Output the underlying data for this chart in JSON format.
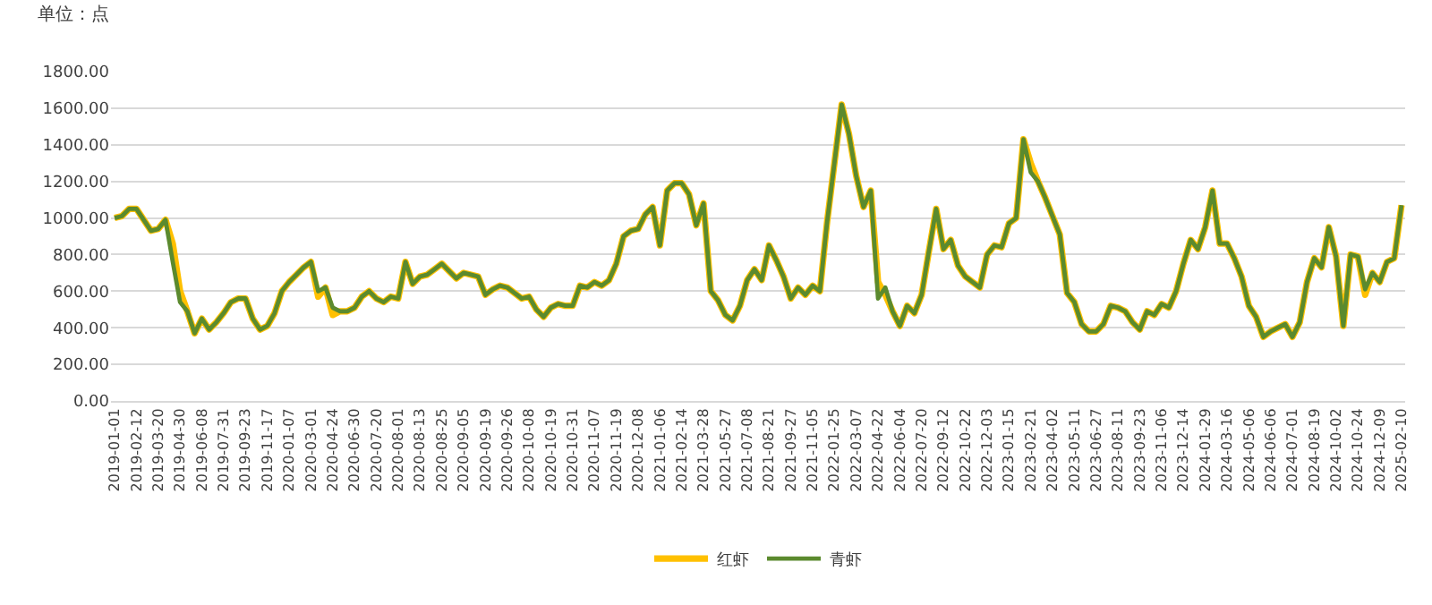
{
  "chart_data": {
    "type": "line",
    "annotations": [
      "单位：点"
    ],
    "categories": [
      "2019-01-01",
      null,
      null,
      "2019-02-12",
      null,
      null,
      "2019-03-20",
      null,
      null,
      "2019-04-30",
      null,
      null,
      "2019-06-08",
      null,
      null,
      "2019-07-31",
      null,
      null,
      "2019-09-23",
      null,
      null,
      "2019-11-17",
      null,
      null,
      "2020-01-07",
      null,
      null,
      "2020-03-01",
      null,
      null,
      "2020-04-24",
      null,
      null,
      "2020-06-30",
      null,
      null,
      "2020-07-20",
      null,
      null,
      "2020-08-01",
      null,
      null,
      "2020-08-13",
      null,
      null,
      "2020-08-25",
      null,
      null,
      "2020-09-05",
      null,
      null,
      "2020-09-19",
      null,
      null,
      "2020-09-26",
      null,
      null,
      "2020-10-08",
      null,
      null,
      "2020-10-19",
      null,
      null,
      "2020-10-31",
      null,
      null,
      "2020-11-07",
      null,
      null,
      "2020-11-19",
      null,
      null,
      "2020-12-08",
      null,
      null,
      "2021-01-06",
      null,
      null,
      "2021-02-14",
      null,
      null,
      "2021-03-28",
      null,
      null,
      "2021-05-27",
      null,
      null,
      "2021-07-08",
      null,
      null,
      "2021-08-21",
      null,
      null,
      "2021-09-27",
      null,
      null,
      "2021-11-05",
      null,
      null,
      "2022-01-25",
      null,
      null,
      "2022-03-07",
      null,
      null,
      "2022-04-22",
      null,
      null,
      "2022-06-04",
      null,
      null,
      "2022-07-20",
      null,
      null,
      "2022-09-12",
      null,
      null,
      "2022-10-22",
      null,
      null,
      "2022-12-03",
      null,
      null,
      "2023-01-15",
      null,
      null,
      "2023-02-21",
      null,
      null,
      "2023-04-02",
      null,
      null,
      "2023-05-11",
      null,
      null,
      "2023-06-27",
      null,
      null,
      "2023-08-11",
      null,
      null,
      "2023-09-23",
      null,
      null,
      "2023-11-06",
      null,
      null,
      "2023-12-14",
      null,
      null,
      "2024-01-29",
      null,
      null,
      "2024-03-16",
      null,
      null,
      "2024-05-06",
      null,
      null,
      "2024-06-06",
      null,
      null,
      "2024-07-01",
      null,
      null,
      "2024-08-19",
      null,
      null,
      "2024-10-02",
      null,
      null,
      "2024-10-24",
      null,
      null,
      "2024-12-09",
      null,
      null,
      "2025-02-10"
    ],
    "series": [
      {
        "name": "红虾",
        "color": "#ffc000",
        "values": [
          1000,
          1010,
          1050,
          1050,
          990,
          930,
          940,
          990,
          860,
          600,
          490,
          370,
          450,
          390,
          430,
          480,
          540,
          560,
          560,
          450,
          390,
          410,
          480,
          600,
          650,
          690,
          730,
          760,
          570,
          620,
          470,
          490,
          490,
          510,
          570,
          600,
          560,
          540,
          570,
          560,
          760,
          640,
          680,
          690,
          720,
          750,
          710,
          670,
          700,
          690,
          680,
          580,
          610,
          630,
          620,
          590,
          560,
          570,
          500,
          460,
          510,
          530,
          520,
          520,
          630,
          620,
          650,
          630,
          660,
          750,
          900,
          930,
          940,
          1020,
          1060,
          850,
          1150,
          1190,
          1190,
          1130,
          960,
          1080,
          600,
          550,
          470,
          440,
          520,
          660,
          720,
          660,
          850,
          770,
          680,
          560,
          620,
          580,
          630,
          600,
          980,
          1300,
          1620,
          1460,
          1230,
          1060,
          1150,
          650,
          580,
          490,
          410,
          520,
          480,
          580,
          820,
          1050,
          830,
          880,
          740,
          680,
          650,
          620,
          800,
          850,
          840,
          970,
          1000,
          1430,
          1300,
          1200,
          1110,
          1010,
          910,
          590,
          540,
          420,
          380,
          380,
          420,
          520,
          510,
          490,
          430,
          390,
          490,
          470,
          530,
          510,
          600,
          750,
          880,
          830,
          950,
          1150,
          860,
          860,
          780,
          680,
          520,
          460,
          350,
          380,
          400,
          420,
          350,
          430,
          650,
          780,
          730,
          950,
          790,
          410,
          800,
          790,
          580,
          700,
          650,
          760,
          780,
          1070
        ]
      },
      {
        "name": "青虾",
        "color": "#5b8a2e",
        "values": [
          1000,
          1010,
          1050,
          1050,
          990,
          930,
          940,
          990,
          760,
          540,
          490,
          370,
          450,
          390,
          430,
          480,
          540,
          560,
          560,
          450,
          390,
          410,
          480,
          600,
          650,
          690,
          730,
          760,
          600,
          620,
          510,
          490,
          490,
          510,
          570,
          600,
          560,
          540,
          570,
          560,
          760,
          640,
          680,
          690,
          720,
          750,
          710,
          670,
          700,
          690,
          680,
          580,
          610,
          630,
          620,
          590,
          560,
          570,
          500,
          460,
          510,
          530,
          520,
          520,
          630,
          620,
          650,
          630,
          660,
          750,
          900,
          930,
          940,
          1020,
          1060,
          850,
          1150,
          1190,
          1190,
          1130,
          960,
          1080,
          600,
          550,
          470,
          440,
          520,
          660,
          720,
          660,
          850,
          770,
          680,
          560,
          620,
          580,
          630,
          600,
          980,
          1300,
          1620,
          1460,
          1230,
          1060,
          1150,
          560,
          620,
          490,
          410,
          520,
          480,
          580,
          820,
          1050,
          830,
          880,
          740,
          680,
          650,
          620,
          800,
          850,
          840,
          970,
          1000,
          1430,
          1250,
          1200,
          1110,
          1010,
          910,
          590,
          540,
          420,
          380,
          380,
          420,
          520,
          510,
          490,
          430,
          390,
          490,
          470,
          530,
          510,
          600,
          750,
          880,
          830,
          950,
          1150,
          860,
          860,
          780,
          680,
          520,
          460,
          350,
          380,
          400,
          420,
          350,
          430,
          650,
          780,
          730,
          950,
          790,
          410,
          800,
          790,
          610,
          700,
          650,
          760,
          780,
          1070
        ]
      }
    ],
    "ylim": [
      0,
      1800
    ],
    "yticks": [
      {
        "value": 0,
        "label": "0.00"
      },
      {
        "value": 200,
        "label": "200.00"
      },
      {
        "value": 400,
        "label": "400.00"
      },
      {
        "value": 600,
        "label": "600.00"
      },
      {
        "value": 800,
        "label": "800.00"
      },
      {
        "value": 1000,
        "label": "1000.00"
      },
      {
        "value": 1200,
        "label": "1200.00"
      },
      {
        "value": 1400,
        "label": "1400.00"
      },
      {
        "value": 1600,
        "label": "1600.00"
      },
      {
        "value": 1800,
        "label": "1800.00"
      }
    ],
    "grid": "y",
    "legend": "bottom",
    "marker": "none",
    "line_style": "solid"
  }
}
